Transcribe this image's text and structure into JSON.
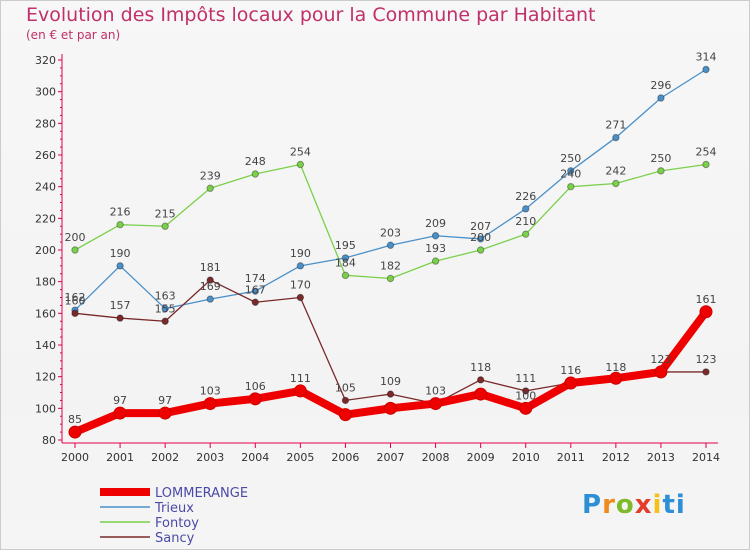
{
  "title": "Evolution des Impôts locaux pour la Commune par Habitant",
  "subtitle": "(en € et par an)",
  "logo": "Proxiti",
  "chart_data": {
    "type": "line",
    "x": [
      2000,
      2001,
      2002,
      2003,
      2004,
      2005,
      2006,
      2007,
      2008,
      2009,
      2010,
      2011,
      2012,
      2013,
      2014
    ],
    "ylim": [
      80,
      320
    ],
    "yticks": [
      80,
      100,
      120,
      140,
      160,
      180,
      200,
      220,
      240,
      260,
      280,
      300,
      320
    ],
    "grid": false,
    "legend_position": "bottom-left",
    "series": [
      {
        "name": "LOMMERANGE",
        "color": "#ee0000",
        "values": [
          85,
          97,
          97,
          103,
          106,
          111,
          96,
          100,
          103,
          109,
          100,
          116,
          119,
          123,
          161
        ],
        "labels": [
          "85",
          "97",
          "97",
          "103",
          "106",
          "111",
          "",
          "",
          "",
          "",
          "100",
          "",
          "",
          "",
          "161"
        ]
      },
      {
        "name": "Trieux",
        "color": "#4a90c8",
        "values": [
          162,
          190,
          163,
          169,
          174,
          190,
          195,
          203,
          209,
          207,
          226,
          250,
          271,
          296,
          314
        ],
        "labels": [
          "162",
          "190",
          "163",
          "169",
          "174",
          "190",
          "195",
          "203",
          "209",
          "207",
          "226",
          "250",
          "271",
          "296",
          "314"
        ]
      },
      {
        "name": "Fontoy",
        "color": "#7bd04b",
        "values": [
          200,
          216,
          215,
          239,
          248,
          254,
          184,
          182,
          193,
          200,
          210,
          240,
          242,
          250,
          254
        ],
        "labels": [
          "200",
          "216",
          "215",
          "239",
          "248",
          "254",
          "184",
          "182",
          "193",
          "200",
          "210",
          "240",
          "242",
          "250",
          "254"
        ]
      },
      {
        "name": "Sancy",
        "color": "#7a2a2a",
        "values": [
          160,
          157,
          155,
          181,
          167,
          170,
          105,
          109,
          103,
          118,
          111,
          116,
          118,
          123,
          123
        ],
        "labels": [
          "160",
          "157",
          "155",
          "181",
          "167",
          "170",
          "105",
          "109",
          "103",
          "118",
          "111",
          "116",
          "118",
          "123",
          "123"
        ]
      }
    ]
  }
}
